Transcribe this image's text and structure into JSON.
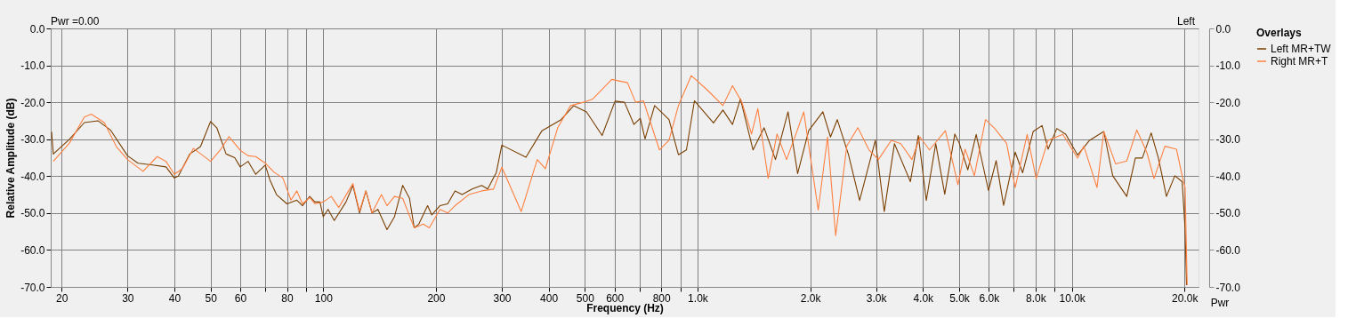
{
  "chart_data": {
    "type": "line",
    "xlabel": "Frequency (Hz)",
    "ylabel": "Relative Amplitude (dB)",
    "legend_title": "Overlays",
    "legend": "right",
    "log": "x",
    "grid": true,
    "xlim": [
      18.7,
      21800
    ],
    "ylim": [
      -70,
      0
    ],
    "y2lim": [
      -70,
      0
    ],
    "xticks": [
      20,
      30,
      40,
      50,
      60,
      {
        "value": 70,
        "label": null
      },
      80,
      {
        "value": 90,
        "label": null
      },
      100,
      200,
      300,
      400,
      500,
      600,
      {
        "value": 700,
        "label": null
      },
      800,
      {
        "value": 900,
        "label": null
      },
      {
        "value": 1000,
        "label": "1.0k"
      },
      {
        "value": 2000,
        "label": "2.0k"
      },
      {
        "value": 3000,
        "label": "3.0k"
      },
      {
        "value": 4000,
        "label": "4.0k"
      },
      {
        "value": 5000,
        "label": "5.0k"
      },
      {
        "value": 6000,
        "label": "6.0k"
      },
      {
        "value": 7000,
        "label": null
      },
      {
        "value": 8000,
        "label": "8.0k"
      },
      {
        "value": 9000,
        "label": null
      },
      {
        "value": 10000,
        "label": "10.0k"
      },
      {
        "value": 20000,
        "label": "20.0k"
      }
    ],
    "yticks": [
      {
        "value": 0,
        "label": "0.0"
      },
      {
        "value": -10,
        "label": "-10.0"
      },
      {
        "value": -20,
        "label": "-20.0"
      },
      {
        "value": -30,
        "label": "-30.0"
      },
      {
        "value": -40,
        "label": "-40.0"
      },
      {
        "value": -50,
        "label": "-50.0"
      },
      {
        "value": -60,
        "label": "-60.0"
      },
      {
        "value": -70,
        "label": "-70.0"
      }
    ],
    "y2ticks": [
      {
        "value": 0,
        "label": "0.0"
      },
      {
        "value": -10,
        "label": "-10.0"
      },
      {
        "value": -20,
        "label": "-20.0"
      },
      {
        "value": -30,
        "label": "-30.0"
      },
      {
        "value": -40,
        "label": "-40.0"
      },
      {
        "value": -50,
        "label": "-50.0"
      },
      {
        "value": -60,
        "label": "-60.0"
      },
      {
        "value": -70,
        "label": "-70.0"
      }
    ],
    "annotations": [
      "Pwr =0.00",
      "Left",
      "Pwr"
    ],
    "series": [
      {
        "name": "Left MR+TW",
        "color": "#7a3e00",
        "x": [
          18.8,
          19,
          21,
          23,
          25,
          27,
          30,
          32,
          35,
          38,
          40,
          41,
          44,
          47,
          50,
          52,
          55,
          58,
          60,
          63,
          66,
          70,
          72,
          75,
          80,
          85,
          88,
          92,
          95,
          98,
          100,
          103,
          107,
          115,
          120,
          125,
          130,
          135,
          140,
          148,
          155,
          163,
          170,
          175,
          180,
          190,
          195,
          205,
          215,
          225,
          235,
          250,
          265,
          275,
          290,
          300,
          348,
          384,
          432,
          467,
          505,
          556,
          602,
          638,
          676,
          703,
          724,
          768,
          839,
          889,
          934,
          981,
          1040,
          1103,
          1169,
          1240,
          1302,
          1407,
          1506,
          1615,
          1745,
          1851,
          1981,
          2162,
          2266,
          2362,
          2531,
          2710,
          2986,
          3154,
          3358,
          3704,
          3889,
          4085,
          4329,
          4576,
          4868,
          5000,
          5273,
          5552,
          5988,
          6278,
          6572,
          7059,
          7387,
          7886,
          8327,
          8640,
          9119,
          9634,
          10360,
          11155,
          12172,
          12862,
          14018,
          14781,
          15431,
          16295,
          17032,
          17898,
          18841,
          19714,
          20073,
          20250
        ],
        "values": [
          -28,
          -34,
          -30,
          -25.5,
          -25,
          -27.5,
          -34.5,
          -36.5,
          -37,
          -37.5,
          -40.5,
          -40,
          -34,
          -32,
          -25.2,
          -27,
          -34,
          -35,
          -37.5,
          -36,
          -39.5,
          -37,
          -41,
          -45,
          -47.5,
          -46.5,
          -48,
          -45.5,
          -47,
          -47,
          -51,
          -49,
          -52,
          -47,
          -42.5,
          -50,
          -44,
          -50,
          -49,
          -54.5,
          -51,
          -42.5,
          -46,
          -54,
          -53,
          -48,
          -50.5,
          -48,
          -47.5,
          -44,
          -45,
          -43.5,
          -42.5,
          -43.5,
          -39,
          -31.6,
          -34.9,
          -27.7,
          -24.7,
          -20.9,
          -22.6,
          -29,
          -19.7,
          -20,
          -26,
          -24.3,
          -29.9,
          -20.9,
          -24.7,
          -34.2,
          -32.9,
          -19.6,
          -22.6,
          -25.6,
          -22.1,
          -26,
          -19.1,
          -32.9,
          -26.9,
          -35.5,
          -22.6,
          -39.3,
          -27.7,
          -22.6,
          -29.4,
          -24.7,
          -34.2,
          -46.6,
          -30.3,
          -49.6,
          -31.2,
          -41.5,
          -29,
          -46.6,
          -31.2,
          -44.9,
          -28.6,
          -31,
          -38.3,
          -28.7,
          -43.9,
          -35.8,
          -47.9,
          -33.5,
          -39.1,
          -27.9,
          -26.3,
          -32.7,
          -27.1,
          -28.7,
          -34.3,
          -30.3,
          -27.9,
          -39.9,
          -45.5,
          -35.1,
          -35.1,
          -28.3,
          -35.1,
          -45.5,
          -39.9,
          -41.5,
          -54.3,
          -69.5
        ]
      },
      {
        "name": "Right MR+T",
        "color": "#ff8040",
        "x": [
          19,
          21,
          23,
          24,
          26,
          28,
          30,
          33,
          36,
          38,
          40,
          42,
          45,
          50,
          53,
          56,
          60,
          63,
          66,
          70,
          74,
          78,
          82,
          85,
          88,
          92,
          95,
          100,
          105,
          110,
          120,
          125,
          130,
          135,
          143,
          148,
          155,
          163,
          175,
          185,
          192,
          205,
          215,
          225,
          245,
          265,
          285,
          300,
          338,
          373,
          392,
          423,
          458,
          496,
          525,
          590,
          650,
          683,
          717,
          791,
          839,
          889,
          962,
          1060,
          1169,
          1240,
          1314,
          1394,
          1449,
          1544,
          1631,
          1729,
          1832,
          1922,
          2101,
          2225,
          2339,
          2505,
          2681,
          2871,
          3043,
          3294,
          3492,
          3739,
          3929,
          4165,
          4594,
          4963,
          5186,
          5490,
          5880,
          6221,
          6693,
          7059,
          7596,
          8031,
          8640,
          9461,
          10360,
          10770,
          11676,
          12172,
          13098,
          14018,
          14911,
          15855,
          16584,
          17724,
          19036,
          19714,
          20073,
          20328
        ],
        "values": [
          -36,
          -31,
          -24,
          -23.2,
          -25.5,
          -32,
          -35.5,
          -38.7,
          -34.7,
          -36,
          -39.5,
          -38,
          -32.5,
          -36,
          -33,
          -29.3,
          -33,
          -34.5,
          -34.7,
          -36.5,
          -39,
          -40.5,
          -46.5,
          -44,
          -47.5,
          -45.8,
          -47.5,
          -47,
          -45.5,
          -48.5,
          -42,
          -49.5,
          -44,
          -50,
          -45,
          -48,
          -45.5,
          -46,
          -54,
          -53,
          -54,
          -49,
          -50,
          -48,
          -45,
          -44,
          -43.5,
          -37.6,
          -49.6,
          -35.5,
          -38,
          -26.9,
          -20.9,
          -20,
          -19.1,
          -13.8,
          -14.7,
          -20,
          -19.6,
          -32.9,
          -30.3,
          -20.9,
          -12.8,
          -16.6,
          -20.9,
          -15.5,
          -20,
          -28.6,
          -21.7,
          -40.6,
          -28.6,
          -35.5,
          -28.6,
          -22.6,
          -49.2,
          -29.4,
          -56.1,
          -31.8,
          -26.9,
          -32.9,
          -35.5,
          -30.3,
          -31.2,
          -35.5,
          -29.4,
          -32.9,
          -27.7,
          -42.3,
          -32.7,
          -39.9,
          -24.7,
          -27.1,
          -31.1,
          -43.1,
          -28.7,
          -40.7,
          -30.3,
          -28.7,
          -35.1,
          -31.9,
          -43.1,
          -27.9,
          -36.7,
          -35.9,
          -27.5,
          -33.5,
          -40.7,
          -31.9,
          -32.7,
          -39.9,
          -43.1,
          -69.5
        ]
      }
    ]
  }
}
